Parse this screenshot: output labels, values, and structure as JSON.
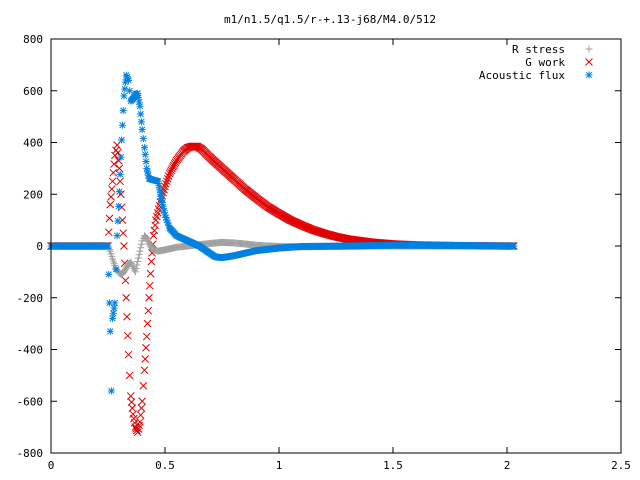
{
  "chart_data": {
    "type": "scatter",
    "title": "m1/n1.5/q1.5/r-+.13-j68/M4.0/512",
    "xlabel": "",
    "ylabel": "",
    "xlim": [
      0,
      2.5
    ],
    "ylim": [
      -800,
      800
    ],
    "xticks": [
      {
        "value": 0,
        "label": "0"
      },
      {
        "value": 0.5,
        "label": "0.5"
      },
      {
        "value": 1,
        "label": "1"
      },
      {
        "value": 1.5,
        "label": "1.5"
      },
      {
        "value": 2,
        "label": "2"
      },
      {
        "value": 2.5,
        "label": "2.5"
      }
    ],
    "yticks": [
      {
        "value": -800,
        "label": "-800"
      },
      {
        "value": -600,
        "label": "-600"
      },
      {
        "value": -400,
        "label": "-400"
      },
      {
        "value": -200,
        "label": "-200"
      },
      {
        "value": 0,
        "label": "0"
      },
      {
        "value": 200,
        "label": "200"
      },
      {
        "value": 400,
        "label": "400"
      },
      {
        "value": 600,
        "label": "600"
      },
      {
        "value": 800,
        "label": "800"
      }
    ],
    "grid": false,
    "legend_position": "top-right",
    "series": [
      {
        "name": "R stress",
        "marker": "plus",
        "color": "#a0a0a0",
        "points": [
          [
            0,
            0
          ],
          [
            0.1,
            0
          ],
          [
            0.2,
            0
          ],
          [
            0.25,
            0
          ],
          [
            0.26,
            -20
          ],
          [
            0.27,
            -50
          ],
          [
            0.28,
            -75
          ],
          [
            0.29,
            -95
          ],
          [
            0.3,
            -105
          ],
          [
            0.31,
            -110
          ],
          [
            0.32,
            -100
          ],
          [
            0.33,
            -85
          ],
          [
            0.34,
            -70
          ],
          [
            0.35,
            -62
          ],
          [
            0.36,
            -80
          ],
          [
            0.37,
            -100
          ],
          [
            0.38,
            -60
          ],
          [
            0.39,
            -20
          ],
          [
            0.4,
            20
          ],
          [
            0.41,
            40
          ],
          [
            0.42,
            30
          ],
          [
            0.43,
            10
          ],
          [
            0.44,
            -5
          ],
          [
            0.45,
            -15
          ],
          [
            0.47,
            -20
          ],
          [
            0.5,
            -15
          ],
          [
            0.55,
            -5
          ],
          [
            0.6,
            0
          ],
          [
            0.65,
            5
          ],
          [
            0.7,
            10
          ],
          [
            0.75,
            14
          ],
          [
            0.8,
            12
          ],
          [
            0.85,
            8
          ],
          [
            0.9,
            3
          ],
          [
            0.95,
            0
          ],
          [
            1.0,
            -2
          ],
          [
            1.1,
            -3
          ],
          [
            1.2,
            -2
          ],
          [
            1.4,
            0
          ],
          [
            1.6,
            0
          ],
          [
            1.8,
            0
          ],
          [
            2.0,
            0
          ],
          [
            2.03,
            0
          ]
        ]
      },
      {
        "name": "G work",
        "marker": "cross",
        "color": "#e00000",
        "points": [
          [
            0,
            0
          ],
          [
            0.1,
            0
          ],
          [
            0.2,
            0
          ],
          [
            0.25,
            0
          ],
          [
            0.26,
            160
          ],
          [
            0.27,
            250
          ],
          [
            0.28,
            350
          ],
          [
            0.29,
            390
          ],
          [
            0.3,
            300
          ],
          [
            0.31,
            150
          ],
          [
            0.32,
            0
          ],
          [
            0.33,
            -200
          ],
          [
            0.34,
            -420
          ],
          [
            0.35,
            -580
          ],
          [
            0.36,
            -650
          ],
          [
            0.37,
            -700
          ],
          [
            0.38,
            -720
          ],
          [
            0.39,
            -680
          ],
          [
            0.4,
            -600
          ],
          [
            0.41,
            -480
          ],
          [
            0.42,
            -350
          ],
          [
            0.43,
            -200
          ],
          [
            0.44,
            -60
          ],
          [
            0.45,
            40
          ],
          [
            0.46,
            100
          ],
          [
            0.48,
            170
          ],
          [
            0.5,
            230
          ],
          [
            0.52,
            280
          ],
          [
            0.55,
            330
          ],
          [
            0.58,
            365
          ],
          [
            0.6,
            380
          ],
          [
            0.62,
            385
          ],
          [
            0.64,
            385
          ],
          [
            0.66,
            375
          ],
          [
            0.7,
            340
          ],
          [
            0.75,
            300
          ],
          [
            0.8,
            260
          ],
          [
            0.85,
            220
          ],
          [
            0.9,
            185
          ],
          [
            0.95,
            152
          ],
          [
            1.0,
            125
          ],
          [
            1.05,
            100
          ],
          [
            1.1,
            80
          ],
          [
            1.15,
            62
          ],
          [
            1.2,
            48
          ],
          [
            1.25,
            36
          ],
          [
            1.3,
            27
          ],
          [
            1.4,
            15
          ],
          [
            1.5,
            8
          ],
          [
            1.6,
            4
          ],
          [
            1.8,
            1
          ],
          [
            2.0,
            0
          ],
          [
            2.03,
            0
          ]
        ]
      },
      {
        "name": "Acoustic flux",
        "marker": "star",
        "color": "#0080e0",
        "points": [
          [
            0,
            0
          ],
          [
            0.1,
            0
          ],
          [
            0.2,
            0
          ],
          [
            0.25,
            0
          ],
          [
            0.26,
            -330
          ],
          [
            0.265,
            -560
          ],
          [
            0.27,
            -280
          ],
          [
            0.28,
            -220
          ],
          [
            0.29,
            40
          ],
          [
            0.3,
            210
          ],
          [
            0.31,
            410
          ],
          [
            0.32,
            580
          ],
          [
            0.33,
            660
          ],
          [
            0.34,
            640
          ],
          [
            0.35,
            560
          ],
          [
            0.36,
            570
          ],
          [
            0.37,
            585
          ],
          [
            0.38,
            590
          ],
          [
            0.39,
            540
          ],
          [
            0.4,
            450
          ],
          [
            0.41,
            380
          ],
          [
            0.42,
            300
          ],
          [
            0.43,
            260
          ],
          [
            0.45,
            255
          ],
          [
            0.47,
            250
          ],
          [
            0.48,
            200
          ],
          [
            0.5,
            120
          ],
          [
            0.52,
            70
          ],
          [
            0.55,
            40
          ],
          [
            0.6,
            20
          ],
          [
            0.65,
            0
          ],
          [
            0.7,
            -30
          ],
          [
            0.72,
            -42
          ],
          [
            0.75,
            -45
          ],
          [
            0.8,
            -38
          ],
          [
            0.85,
            -28
          ],
          [
            0.9,
            -18
          ],
          [
            1.0,
            -8
          ],
          [
            1.1,
            -2
          ],
          [
            1.3,
            0
          ],
          [
            1.5,
            3
          ],
          [
            1.8,
            2
          ],
          [
            2.0,
            0
          ],
          [
            2.03,
            0
          ]
        ]
      }
    ]
  }
}
